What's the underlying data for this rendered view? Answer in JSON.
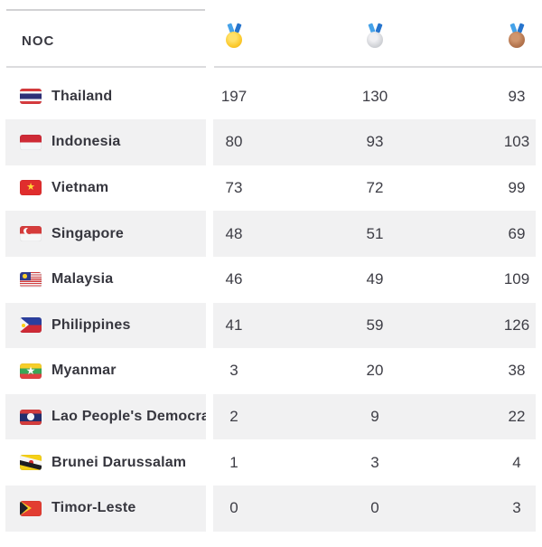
{
  "table": {
    "header": {
      "noc_label": "NOC",
      "medal_columns": [
        {
          "icon": "gold-medal-icon"
        },
        {
          "icon": "silver-medal-icon"
        },
        {
          "icon": "bronze-medal-icon"
        }
      ]
    },
    "rows": [
      {
        "name": "Thailand",
        "flag": "th",
        "gold": "197",
        "silver": "130",
        "bronze": "93"
      },
      {
        "name": "Indonesia",
        "flag": "id",
        "gold": "80",
        "silver": "93",
        "bronze": "103"
      },
      {
        "name": "Vietnam",
        "flag": "vn",
        "gold": "73",
        "silver": "72",
        "bronze": "99"
      },
      {
        "name": "Singapore",
        "flag": "sg",
        "gold": "48",
        "silver": "51",
        "bronze": "69"
      },
      {
        "name": "Malaysia",
        "flag": "my",
        "gold": "46",
        "silver": "49",
        "bronze": "109"
      },
      {
        "name": "Philippines",
        "flag": "ph",
        "gold": "41",
        "silver": "59",
        "bronze": "126"
      },
      {
        "name": "Myanmar",
        "flag": "mm",
        "gold": "3",
        "silver": "20",
        "bronze": "38"
      },
      {
        "name": "Lao People's Democratic Republic",
        "flag": "la",
        "gold": "2",
        "silver": "9",
        "bronze": "22"
      },
      {
        "name": "Brunei Darussalam",
        "flag": "bn",
        "gold": "1",
        "silver": "3",
        "bronze": "4"
      },
      {
        "name": "Timor-Leste",
        "flag": "tl",
        "gold": "0",
        "silver": "0",
        "bronze": "3"
      }
    ]
  },
  "colors": {
    "row_stripe": "#f1f1f2",
    "divider": "#dcdcde",
    "text": "#36363e",
    "medal_gold": "#fbc92c",
    "medal_silver": "#d2d4d8",
    "medal_bronze": "#b3744d",
    "ribbon_blue": "#45a2e9"
  }
}
